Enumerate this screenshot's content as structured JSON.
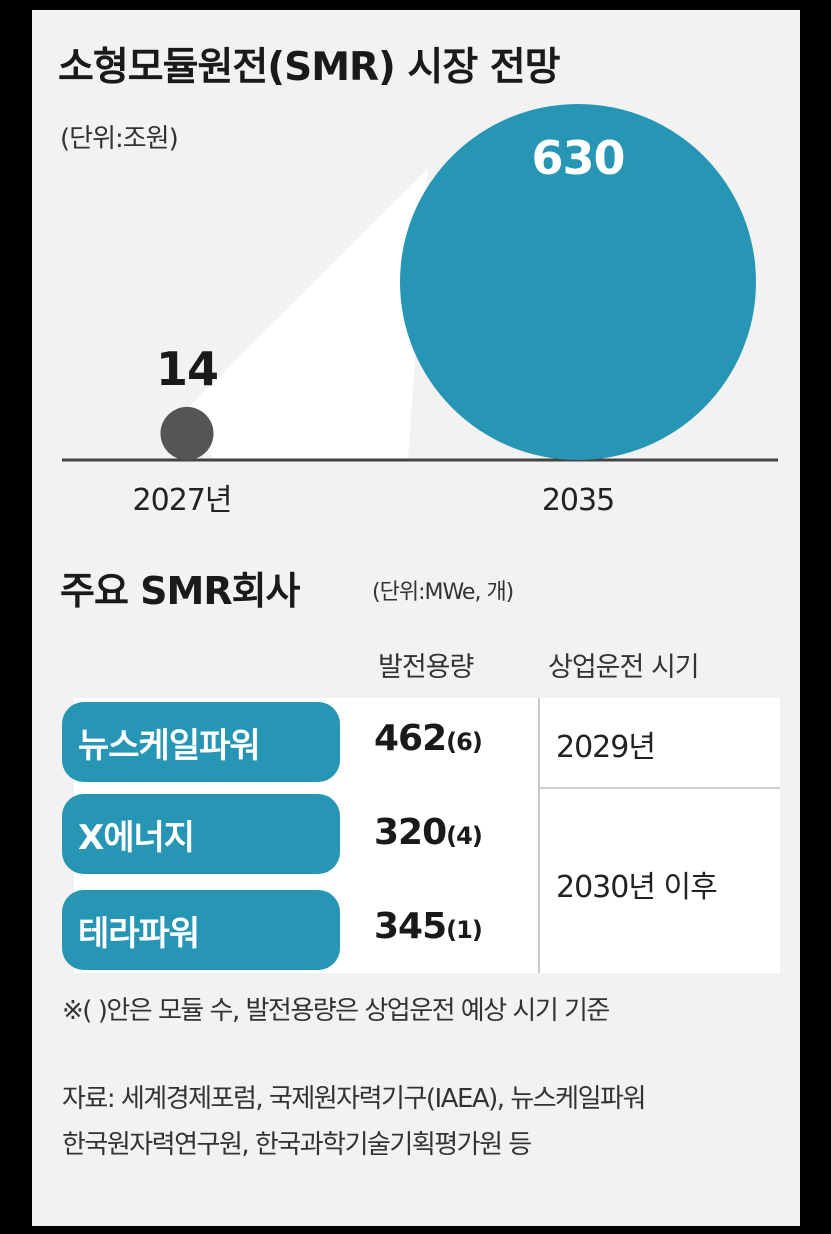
{
  "chart_data": [
    {
      "type": "bubble",
      "title": "소형모듈원전(SMR) 시장 전망",
      "unit": "(단위:조원)",
      "categories": [
        "2027년",
        "2035"
      ],
      "values": [
        14,
        630
      ],
      "colors": [
        "#555555",
        "#2696b4"
      ]
    },
    {
      "type": "table",
      "title": "주요 SMR회사",
      "unit": "(단위:MWe, 개)",
      "columns": [
        "발전용량",
        "상업운전 시기"
      ],
      "rows": [
        {
          "company": "뉴스케일파워",
          "capacity": "462",
          "modules": "(6)",
          "operation": "2029년"
        },
        {
          "company": "X에너지",
          "capacity": "320",
          "modules": "(4)",
          "operation": "2030년 이후"
        },
        {
          "company": "테라파워",
          "capacity": "345",
          "modules": "(1)",
          "operation": "2030년 이후"
        }
      ],
      "note": "※( )안은 모듈 수, 발전용량은 상업운전 예상 시기 기준",
      "source_line1": "자료: 세계경제포럼, 국제원자력기구(IAEA), 뉴스케일파워",
      "source_line2": "한국원자력연구원, 한국과학기술기획평가원 등"
    }
  ]
}
